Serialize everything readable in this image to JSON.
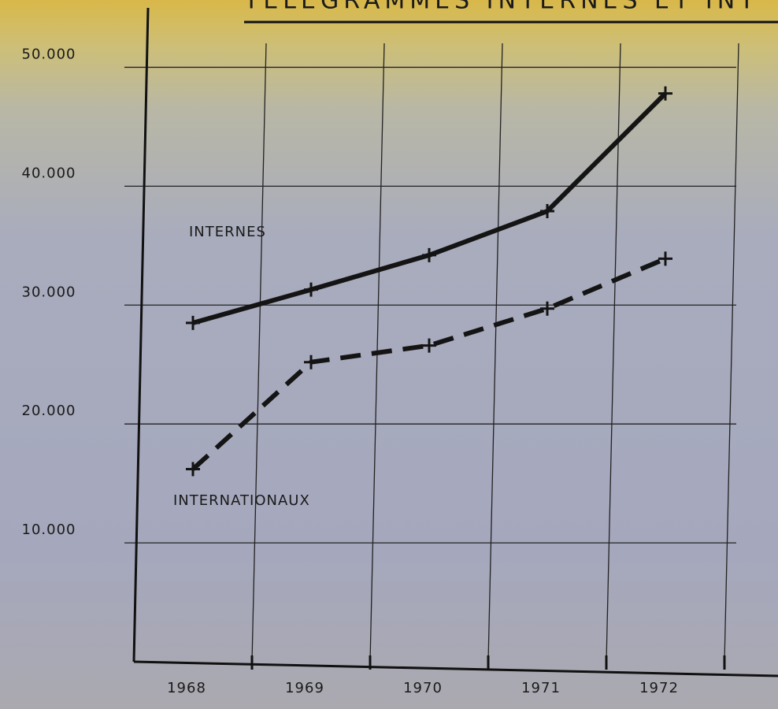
{
  "chart_data": {
    "type": "line",
    "title": "TÉLÉGRAMMES INTERNES ET INT",
    "categories": [
      "1968",
      "1969",
      "1970",
      "1971",
      "1972"
    ],
    "series": [
      {
        "name": "INTERNES",
        "color": "#141414",
        "linestyle": "solid",
        "values": [
          28500,
          31300,
          34200,
          37900,
          47800
        ]
      },
      {
        "name": "INTERNATIONAUX",
        "color": "#141414",
        "linestyle": "dashed",
        "values": [
          16200,
          25200,
          26600,
          29700,
          33900
        ]
      }
    ],
    "ylim": [
      0,
      55000
    ],
    "yticks": [
      {
        "value": 10000,
        "label": "10.000"
      },
      {
        "value": 20000,
        "label": "20.000"
      },
      {
        "value": 30000,
        "label": "30.000"
      },
      {
        "value": 40000,
        "label": "40.000"
      },
      {
        "value": 50000,
        "label": "50.000"
      }
    ],
    "grid": true
  }
}
